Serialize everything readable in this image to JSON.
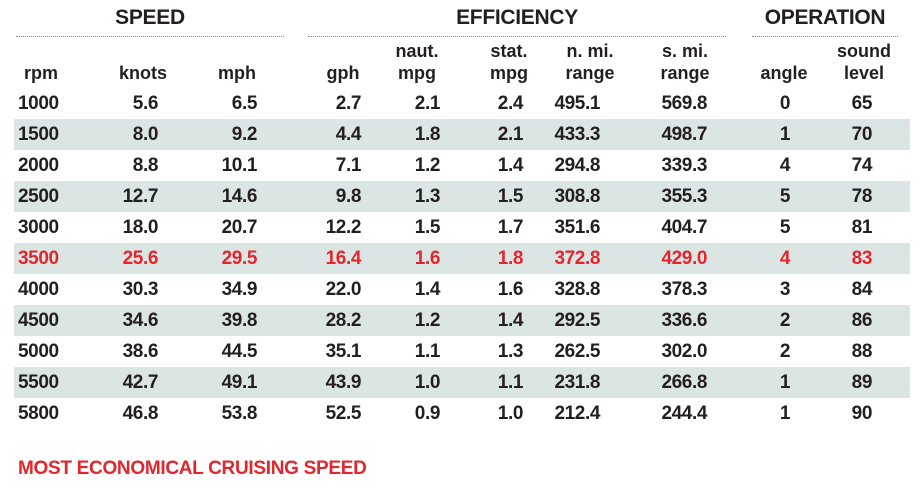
{
  "chart_data": {
    "type": "table",
    "groups": [
      {
        "label": "SPEED"
      },
      {
        "label": "EFFICIENCY"
      },
      {
        "label": "OPERATION"
      }
    ],
    "columns": [
      {
        "line1": "",
        "line2": "rpm"
      },
      {
        "line1": "",
        "line2": "knots"
      },
      {
        "line1": "",
        "line2": "mph"
      },
      {
        "line1": "",
        "line2": "gph"
      },
      {
        "line1": "naut.",
        "line2": "mpg"
      },
      {
        "line1": "stat.",
        "line2": "mpg"
      },
      {
        "line1": "n. mi.",
        "line2": "range"
      },
      {
        "line1": "s. mi.",
        "line2": "range"
      },
      {
        "line1": "",
        "line2": "angle"
      },
      {
        "line1": "sound",
        "line2": "level"
      }
    ],
    "rows": [
      [
        "1000",
        "5.6",
        "6.5",
        "2.7",
        "2.1",
        "2.4",
        "495.1",
        "569.8",
        "0",
        "65"
      ],
      [
        "1500",
        "8.0",
        "9.2",
        "4.4",
        "1.8",
        "2.1",
        "433.3",
        "498.7",
        "1",
        "70"
      ],
      [
        "2000",
        "8.8",
        "10.1",
        "7.1",
        "1.2",
        "1.4",
        "294.8",
        "339.3",
        "4",
        "74"
      ],
      [
        "2500",
        "12.7",
        "14.6",
        "9.8",
        "1.3",
        "1.5",
        "308.8",
        "355.3",
        "5",
        "78"
      ],
      [
        "3000",
        "18.0",
        "20.7",
        "12.2",
        "1.5",
        "1.7",
        "351.6",
        "404.7",
        "5",
        "81"
      ],
      [
        "3500",
        "25.6",
        "29.5",
        "16.4",
        "1.6",
        "1.8",
        "372.8",
        "429.0",
        "4",
        "83"
      ],
      [
        "4000",
        "30.3",
        "34.9",
        "22.0",
        "1.4",
        "1.6",
        "328.8",
        "378.3",
        "3",
        "84"
      ],
      [
        "4500",
        "34.6",
        "39.8",
        "28.2",
        "1.2",
        "1.4",
        "292.5",
        "336.6",
        "2",
        "86"
      ],
      [
        "5000",
        "38.6",
        "44.5",
        "35.1",
        "1.1",
        "1.3",
        "262.5",
        "302.0",
        "2",
        "88"
      ],
      [
        "5500",
        "42.7",
        "49.1",
        "43.9",
        "1.0",
        "1.1",
        "231.8",
        "266.8",
        "1",
        "89"
      ],
      [
        "5800",
        "46.8",
        "53.8",
        "52.5",
        "0.9",
        "1.0",
        "212.4",
        "244.4",
        "1",
        "90"
      ]
    ],
    "highlight_row": "3500",
    "footnote": "MOST ECONOMICAL CRUISING SPEED",
    "colors": {
      "highlight": "#e3262e",
      "stripe": "#dbe6e4",
      "text": "#231f20"
    }
  }
}
